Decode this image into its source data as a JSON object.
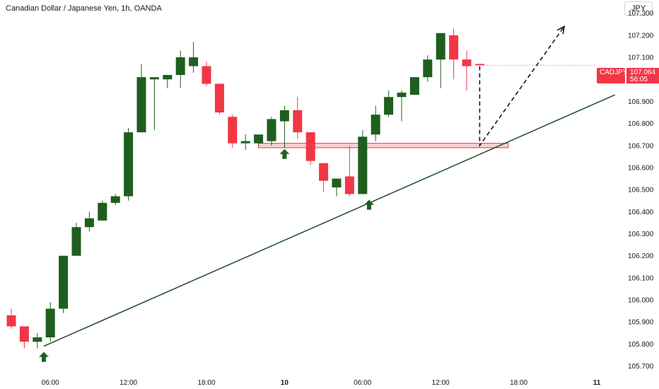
{
  "title": "Canadian Dollar / Japanese Yen, 1h, OANDA",
  "currency_button": "JPY",
  "current_price": {
    "symbol": "CADJPY",
    "price": "107.064",
    "price_value": 107.064,
    "countdown": "56:05"
  },
  "colors": {
    "up": "#1e5f1e",
    "down": "#f23645",
    "trendline": "#1e4d1e",
    "zone_fill": "#f8d0d4",
    "zone_border": "#f23645",
    "arrow": "#1e5f1e",
    "projection": "#131722"
  },
  "chart_data": {
    "type": "candlestick",
    "title": "Canadian Dollar / Japanese Yen, 1h, OANDA",
    "ylim": [
      105.66,
      107.36
    ],
    "y_ticks": [
      "107.300",
      "107.200",
      "107.100",
      "107.000",
      "106.900",
      "106.800",
      "106.700",
      "106.600",
      "106.500",
      "106.400",
      "106.300",
      "106.200",
      "106.100",
      "106.000",
      "105.900",
      "105.800",
      "105.700"
    ],
    "x_ticks": [
      {
        "label": "06:00",
        "index": 3,
        "bold": false
      },
      {
        "label": "12:00",
        "index": 9,
        "bold": false
      },
      {
        "label": "18:00",
        "index": 15,
        "bold": false
      },
      {
        "label": "10",
        "index": 21,
        "bold": true
      },
      {
        "label": "06:00",
        "index": 27,
        "bold": false
      },
      {
        "label": "12:00",
        "index": 33,
        "bold": false
      },
      {
        "label": "18:00",
        "index": 39,
        "bold": false
      },
      {
        "label": "11",
        "index": 45,
        "bold": true
      }
    ],
    "candles": [
      {
        "o": 105.93,
        "h": 105.96,
        "l": 105.87,
        "c": 105.88
      },
      {
        "o": 105.88,
        "h": 105.88,
        "l": 105.78,
        "c": 105.81
      },
      {
        "o": 105.81,
        "h": 105.85,
        "l": 105.78,
        "c": 105.83
      },
      {
        "o": 105.83,
        "h": 105.99,
        "l": 105.81,
        "c": 105.96
      },
      {
        "o": 105.96,
        "h": 106.2,
        "l": 105.94,
        "c": 106.2
      },
      {
        "o": 106.2,
        "h": 106.35,
        "l": 106.2,
        "c": 106.33
      },
      {
        "o": 106.33,
        "h": 106.4,
        "l": 106.31,
        "c": 106.37
      },
      {
        "o": 106.36,
        "h": 106.45,
        "l": 106.36,
        "c": 106.44
      },
      {
        "o": 106.44,
        "h": 106.48,
        "l": 106.43,
        "c": 106.47
      },
      {
        "o": 106.47,
        "h": 106.78,
        "l": 106.45,
        "c": 106.76
      },
      {
        "o": 106.76,
        "h": 107.07,
        "l": 106.76,
        "c": 107.01
      },
      {
        "o": 107.0,
        "h": 107.01,
        "l": 106.77,
        "c": 107.01
      },
      {
        "o": 107.0,
        "h": 107.02,
        "l": 106.96,
        "c": 107.02
      },
      {
        "o": 107.02,
        "h": 107.13,
        "l": 106.96,
        "c": 107.1
      },
      {
        "o": 107.06,
        "h": 107.17,
        "l": 107.03,
        "c": 107.1
      },
      {
        "o": 107.06,
        "h": 107.08,
        "l": 106.97,
        "c": 106.98
      },
      {
        "o": 106.98,
        "h": 106.98,
        "l": 106.84,
        "c": 106.85
      },
      {
        "o": 106.83,
        "h": 106.84,
        "l": 106.69,
        "c": 106.71
      },
      {
        "o": 106.71,
        "h": 106.75,
        "l": 106.68,
        "c": 106.72
      },
      {
        "o": 106.71,
        "h": 106.75,
        "l": 106.7,
        "c": 106.75
      },
      {
        "o": 106.72,
        "h": 106.83,
        "l": 106.7,
        "c": 106.82
      },
      {
        "o": 106.81,
        "h": 106.88,
        "l": 106.69,
        "c": 106.86
      },
      {
        "o": 106.86,
        "h": 106.92,
        "l": 106.73,
        "c": 106.76
      },
      {
        "o": 106.76,
        "h": 106.76,
        "l": 106.61,
        "c": 106.63
      },
      {
        "o": 106.62,
        "h": 106.62,
        "l": 106.49,
        "c": 106.54
      },
      {
        "o": 106.51,
        "h": 106.55,
        "l": 106.47,
        "c": 106.55
      },
      {
        "o": 106.56,
        "h": 106.7,
        "l": 106.47,
        "c": 106.48
      },
      {
        "o": 106.48,
        "h": 106.77,
        "l": 106.48,
        "c": 106.74
      },
      {
        "o": 106.75,
        "h": 106.88,
        "l": 106.72,
        "c": 106.84
      },
      {
        "o": 106.84,
        "h": 106.95,
        "l": 106.83,
        "c": 106.92
      },
      {
        "o": 106.92,
        "h": 106.95,
        "l": 106.81,
        "c": 106.94
      },
      {
        "o": 106.93,
        "h": 107.0,
        "l": 106.93,
        "c": 107.01
      },
      {
        "o": 107.01,
        "h": 107.11,
        "l": 106.99,
        "c": 107.09
      },
      {
        "o": 107.09,
        "h": 107.21,
        "l": 106.96,
        "c": 107.21
      },
      {
        "o": 107.2,
        "h": 107.23,
        "l": 107.0,
        "c": 107.09
      },
      {
        "o": 107.09,
        "h": 107.13,
        "l": 106.95,
        "c": 107.06
      },
      {
        "o": 107.07,
        "h": 107.07,
        "l": 107.07,
        "c": 107.064
      }
    ],
    "trendline": {
      "x1": 2.5,
      "y1": 105.79,
      "x2": 46.4,
      "y2": 106.93
    },
    "support_zone": {
      "x_start": 19,
      "x_end": 38.2,
      "y_low": 106.69,
      "y_high": 106.71
    },
    "projection": [
      {
        "x": 36,
        "y": 107.06
      },
      {
        "x": 36,
        "y": 106.7
      },
      {
        "x": 42.5,
        "y": 107.24
      }
    ],
    "signal_arrows": [
      2.5,
      21.0,
      27.5
    ]
  }
}
